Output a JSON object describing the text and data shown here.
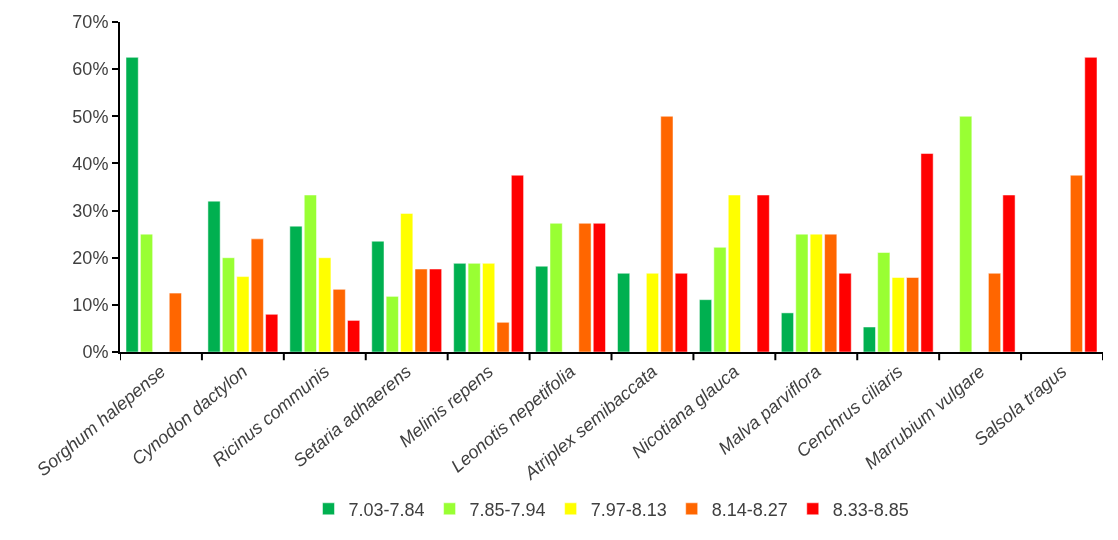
{
  "chart_data": {
    "type": "bar",
    "categories": [
      "Sorghum halepense",
      "Cynodon dactylon",
      "Ricinus communis",
      "Setaria adhaerens",
      "Melinis repens",
      "Leonotis nepetifolia",
      "Atriplex semibaccata",
      "Nicotiana glauca",
      "Malva parviflora",
      "Cenchrus ciliaris",
      "Marrubium vulgare",
      "Salsola tragus"
    ],
    "series": [
      {
        "name": "7.03-7.84",
        "color": "#00b050",
        "values": [
          62.5,
          32,
          26.7,
          23.5,
          18.8,
          18.2,
          16.7,
          11.1,
          8.3,
          5.3,
          null,
          null
        ]
      },
      {
        "name": "7.85-7.94",
        "color": "#99ff33",
        "values": [
          25,
          20,
          33.3,
          11.8,
          18.8,
          27.3,
          null,
          22.2,
          25,
          21.1,
          50,
          null
        ]
      },
      {
        "name": "7.97-8.13",
        "color": "#ffff00",
        "values": [
          null,
          16,
          20,
          29.4,
          18.8,
          null,
          16.7,
          33.3,
          25,
          15.8,
          null,
          null
        ]
      },
      {
        "name": "8.14-8.27",
        "color": "#ff6600",
        "values": [
          12.5,
          24,
          13.3,
          17.6,
          6.3,
          27.3,
          50,
          null,
          25,
          15.8,
          16.7,
          37.5
        ]
      },
      {
        "name": "8.33-8.85",
        "color": "#ff0000",
        "values": [
          null,
          8,
          6.7,
          17.6,
          37.5,
          27.3,
          16.7,
          33.3,
          16.7,
          42.1,
          33.3,
          62.5
        ]
      }
    ],
    "ylim": [
      0,
      70
    ],
    "yticks": [
      {
        "value": 0,
        "label": "0%"
      },
      {
        "value": 10,
        "label": "10%"
      },
      {
        "value": 20,
        "label": "20%"
      },
      {
        "value": 30,
        "label": "30%"
      },
      {
        "value": 40,
        "label": "40%"
      },
      {
        "value": 50,
        "label": "50%"
      },
      {
        "value": 60,
        "label": "60%"
      },
      {
        "value": 70,
        "label": "70%"
      }
    ],
    "legend": "bottom"
  }
}
